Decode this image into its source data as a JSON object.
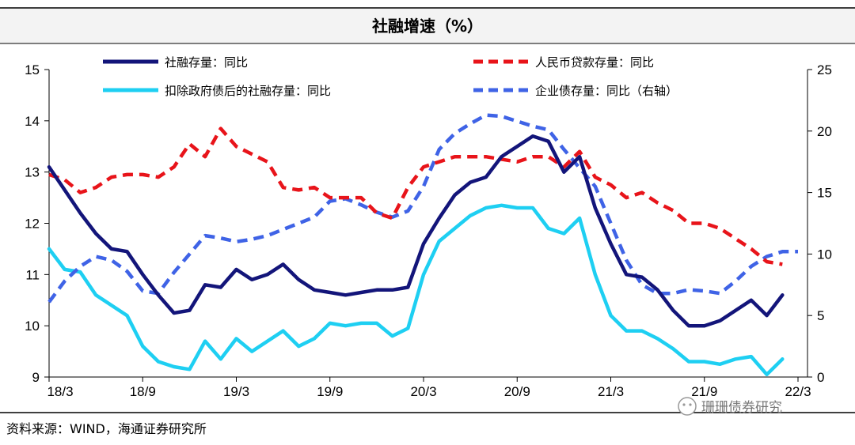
{
  "colors": {
    "navy": "#13157a",
    "cyan": "#1ecff2",
    "red": "#e8141a",
    "blue": "#3f63e6",
    "watermark": "#777777"
  },
  "chart_data": {
    "type": "line",
    "title": "社融增速（%）",
    "source": "资料来源：WIND，海通证券研究所",
    "watermark": "珊珊债券研究",
    "x": [
      "18/3",
      "18/4",
      "18/5",
      "18/6",
      "18/7",
      "18/8",
      "18/9",
      "18/10",
      "18/11",
      "18/12",
      "19/1",
      "19/2",
      "19/3",
      "19/4",
      "19/5",
      "19/6",
      "19/7",
      "19/8",
      "19/9",
      "19/10",
      "19/11",
      "19/12",
      "20/1",
      "20/2",
      "20/3",
      "20/4",
      "20/5",
      "20/6",
      "20/7",
      "20/8",
      "20/9",
      "20/10",
      "20/11",
      "20/12",
      "21/1",
      "21/2",
      "21/3",
      "21/4",
      "21/5",
      "21/6",
      "21/7",
      "21/8",
      "21/9",
      "21/10",
      "21/11",
      "21/12",
      "22/1",
      "22/2",
      "22/3"
    ],
    "x_tick_labels": [
      "18/3",
      "18/9",
      "19/3",
      "19/9",
      "20/3",
      "20/9",
      "21/3",
      "21/9",
      "22/3"
    ],
    "y_left": {
      "min": 9,
      "max": 15,
      "ticks": [
        "9",
        "10",
        "11",
        "12",
        "13",
        "14",
        "15"
      ]
    },
    "y_right": {
      "min": 0,
      "max": 25,
      "ticks": [
        "0",
        "5",
        "10",
        "15",
        "20",
        "25"
      ]
    },
    "series": [
      {
        "name": "社融存量：同比",
        "axis": "left",
        "color": "#13157a",
        "style": "solid",
        "values": [
          13.1,
          12.65,
          12.2,
          11.8,
          11.5,
          11.45,
          11.0,
          10.6,
          10.25,
          10.3,
          10.8,
          10.75,
          11.1,
          10.9,
          11.0,
          11.2,
          10.9,
          10.7,
          10.65,
          10.6,
          10.65,
          10.7,
          10.7,
          10.75,
          11.6,
          12.1,
          12.55,
          12.8,
          12.9,
          13.3,
          13.5,
          13.7,
          13.6,
          13.0,
          13.3,
          12.3,
          11.6,
          11.0,
          10.95,
          10.7,
          10.3,
          10.0,
          10.0,
          10.1,
          10.3,
          10.5,
          10.2,
          10.6,
          null
        ]
      },
      {
        "name": "扣除政府债后的社融存量：同比",
        "axis": "left",
        "color": "#1ecff2",
        "style": "solid",
        "values": [
          11.5,
          11.1,
          11.05,
          10.6,
          10.4,
          10.2,
          9.6,
          9.3,
          9.2,
          9.15,
          9.7,
          9.35,
          9.75,
          9.5,
          9.7,
          9.9,
          9.6,
          9.75,
          10.05,
          10.0,
          10.05,
          10.05,
          9.8,
          9.95,
          11.0,
          11.65,
          11.9,
          12.15,
          12.3,
          12.35,
          12.3,
          12.3,
          11.9,
          11.8,
          12.1,
          11.0,
          10.2,
          9.9,
          9.9,
          9.75,
          9.55,
          9.3,
          9.3,
          9.25,
          9.35,
          9.4,
          9.05,
          9.35,
          null
        ]
      },
      {
        "name": "人民币贷款存量：同比",
        "axis": "left",
        "color": "#e8141a",
        "style": "dashed",
        "values": [
          12.95,
          12.85,
          12.6,
          12.7,
          12.9,
          12.95,
          12.95,
          12.9,
          13.1,
          13.55,
          13.3,
          13.85,
          13.5,
          13.35,
          13.2,
          12.7,
          12.65,
          12.7,
          12.5,
          12.5,
          12.5,
          12.2,
          12.1,
          12.7,
          13.1,
          13.2,
          13.3,
          13.3,
          13.3,
          13.25,
          13.2,
          13.3,
          13.3,
          13.1,
          13.4,
          12.9,
          12.75,
          12.5,
          12.6,
          12.4,
          12.25,
          12.0,
          12.0,
          11.9,
          11.7,
          11.5,
          11.25,
          11.2,
          null
        ]
      },
      {
        "name": "企业债存量：同比（右轴）",
        "axis": "right",
        "color": "#3f63e6",
        "style": "dashed",
        "values": [
          6.1,
          7.8,
          9.0,
          9.8,
          9.5,
          8.6,
          7.0,
          6.8,
          8.5,
          10.0,
          11.5,
          11.3,
          11.0,
          11.2,
          11.5,
          12.0,
          12.5,
          13.0,
          14.3,
          14.5,
          14.0,
          13.4,
          13.0,
          13.5,
          15.5,
          18.5,
          19.8,
          20.6,
          21.3,
          21.2,
          20.8,
          20.4,
          20.1,
          18.5,
          17.0,
          15.5,
          12.5,
          9.5,
          7.5,
          6.8,
          6.8,
          7.1,
          7.0,
          6.8,
          7.8,
          9.0,
          9.8,
          10.2,
          10.2
        ]
      }
    ],
    "legend": [
      {
        "label": "社融存量：同比",
        "color": "#13157a",
        "style": "solid",
        "position": "top-left"
      },
      {
        "label": "人民币贷款存量：同比",
        "color": "#e8141a",
        "style": "dashed",
        "position": "top-right"
      },
      {
        "label": "扣除政府债后的社融存量：同比",
        "color": "#1ecff2",
        "style": "solid",
        "position": "second-row-left"
      },
      {
        "label": "企业债存量：同比（右轴）",
        "color": "#3f63e6",
        "style": "dashed",
        "position": "second-row-right"
      }
    ]
  }
}
